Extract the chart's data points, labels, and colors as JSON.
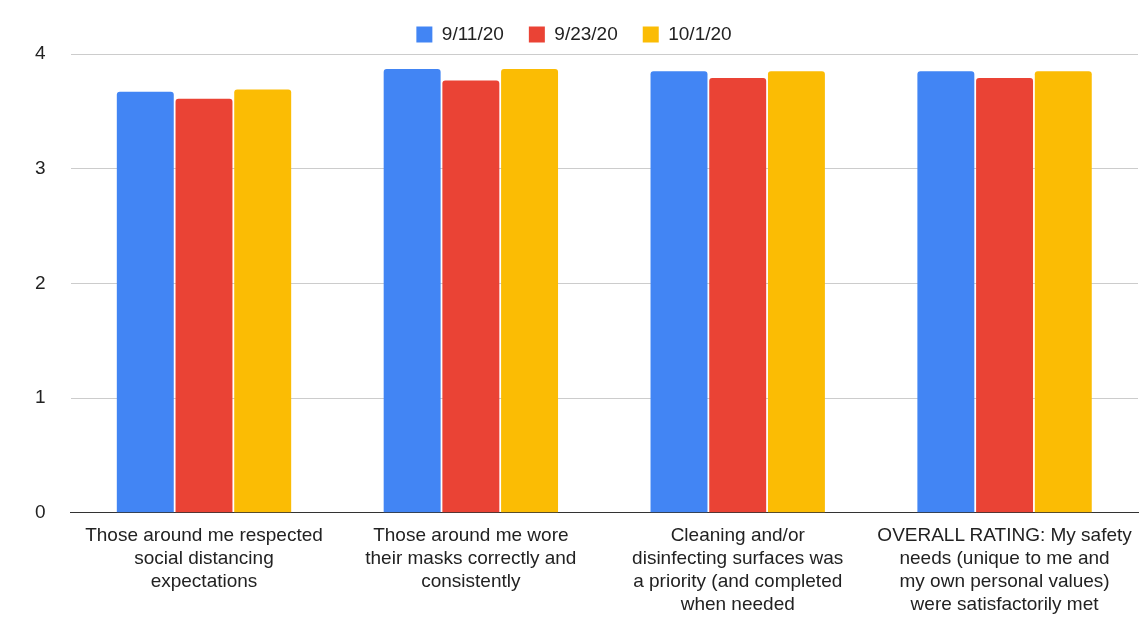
{
  "chart_data": {
    "type": "bar",
    "categories": [
      "Those around me respected social distancing expectations",
      "Those around me wore their masks correctly and consistently",
      "Cleaning and/or disinfecting surfaces was a priority (and completed when needed",
      "OVERALL RATING: My safety needs (unique to me and my own personal values) were satisfactorily met"
    ],
    "series": [
      {
        "name": "9/11/20",
        "color": "#4285f4",
        "values": [
          3.67,
          3.87,
          3.85,
          3.85
        ]
      },
      {
        "name": "9/23/20",
        "color": "#ea4335",
        "values": [
          3.61,
          3.77,
          3.79,
          3.79
        ]
      },
      {
        "name": "10/1/20",
        "color": "#fbbc04",
        "values": [
          3.69,
          3.87,
          3.85,
          3.85
        ]
      }
    ],
    "ylim": [
      0,
      4
    ],
    "yticks": [
      0,
      1,
      2,
      3,
      4
    ],
    "grid": "y",
    "legend": "top"
  }
}
